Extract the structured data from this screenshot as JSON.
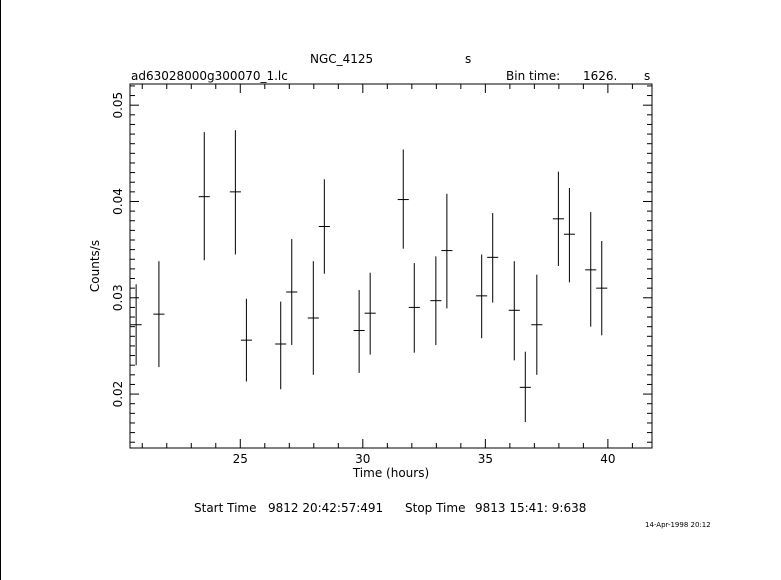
{
  "header": {
    "object": "NGC_4125",
    "object_unit": "s",
    "filename": "ad63028000g300070_1.lc",
    "bin_time_label": "Bin time:",
    "bin_time_value": "1626.",
    "bin_time_unit": "s"
  },
  "footer": {
    "start_label": "Start Time",
    "start_value": "9812 20:42:57:491",
    "stop_label": "Stop Time",
    "stop_value": "9813 15:41: 9:638",
    "date_stamp": "14-Apr-1998 20:12"
  },
  "chart_data": {
    "type": "scatter",
    "xlabel": "Time (hours)",
    "ylabel": "Counts/s",
    "xlim": [
      20.5,
      41.8
    ],
    "ylim": [
      0.0144,
      0.0522
    ],
    "x_ticks": [
      25,
      30,
      35,
      40
    ],
    "y_ticks": [
      0.02,
      0.03,
      0.04,
      0.05
    ],
    "x_tick_labels": [
      "25",
      "30",
      "35",
      "40"
    ],
    "y_tick_labels": [
      "0.02",
      "0.03",
      "0.04",
      "0.05"
    ],
    "x_half_width": 0.226,
    "points": [
      {
        "x": 20.75,
        "y": 0.0272,
        "lo": 0.023,
        "hi": 0.0314
      },
      {
        "x": 21.68,
        "y": 0.0283,
        "lo": 0.0228,
        "hi": 0.0338
      },
      {
        "x": 23.53,
        "y": 0.0405,
        "lo": 0.0339,
        "hi": 0.0472
      },
      {
        "x": 24.8,
        "y": 0.041,
        "lo": 0.0345,
        "hi": 0.0474
      },
      {
        "x": 25.25,
        "y": 0.0256,
        "lo": 0.0213,
        "hi": 0.0299
      },
      {
        "x": 26.65,
        "y": 0.0252,
        "lo": 0.0205,
        "hi": 0.0296
      },
      {
        "x": 27.1,
        "y": 0.0306,
        "lo": 0.0251,
        "hi": 0.0361
      },
      {
        "x": 27.98,
        "y": 0.0279,
        "lo": 0.022,
        "hi": 0.0338
      },
      {
        "x": 28.43,
        "y": 0.0374,
        "lo": 0.0325,
        "hi": 0.0423
      },
      {
        "x": 29.85,
        "y": 0.0266,
        "lo": 0.0222,
        "hi": 0.0308
      },
      {
        "x": 30.3,
        "y": 0.0284,
        "lo": 0.0241,
        "hi": 0.0326
      },
      {
        "x": 31.65,
        "y": 0.0402,
        "lo": 0.0351,
        "hi": 0.0454
      },
      {
        "x": 32.1,
        "y": 0.029,
        "lo": 0.0243,
        "hi": 0.0336
      },
      {
        "x": 32.98,
        "y": 0.0297,
        "lo": 0.0251,
        "hi": 0.0343
      },
      {
        "x": 33.43,
        "y": 0.0349,
        "lo": 0.0289,
        "hi": 0.0408
      },
      {
        "x": 34.85,
        "y": 0.0302,
        "lo": 0.0258,
        "hi": 0.0345
      },
      {
        "x": 35.3,
        "y": 0.0342,
        "lo": 0.0295,
        "hi": 0.0388
      },
      {
        "x": 36.18,
        "y": 0.0287,
        "lo": 0.0235,
        "hi": 0.0338
      },
      {
        "x": 36.63,
        "y": 0.0207,
        "lo": 0.0171,
        "hi": 0.0244
      },
      {
        "x": 37.1,
        "y": 0.0272,
        "lo": 0.022,
        "hi": 0.0324
      },
      {
        "x": 37.98,
        "y": 0.0382,
        "lo": 0.0333,
        "hi": 0.0431
      },
      {
        "x": 38.43,
        "y": 0.0366,
        "lo": 0.0316,
        "hi": 0.0414
      },
      {
        "x": 39.3,
        "y": 0.0329,
        "lo": 0.027,
        "hi": 0.0389
      },
      {
        "x": 39.75,
        "y": 0.031,
        "lo": 0.0261,
        "hi": 0.0359
      }
    ]
  }
}
